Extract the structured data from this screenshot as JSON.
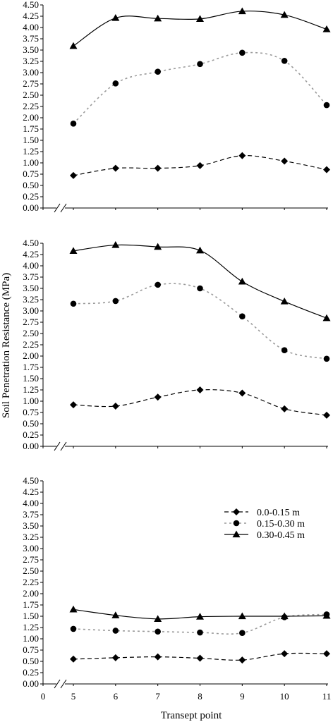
{
  "chart_data": {
    "type": "line",
    "ylabel": "Soil Penetration Resistance (MPa)",
    "xlabel": "Transept point",
    "x_ticks": [
      "0",
      "5",
      "6",
      "7",
      "8",
      "9",
      "10",
      "11"
    ],
    "x": [
      5,
      6,
      7,
      8,
      9,
      10,
      11
    ],
    "xlim": [
      5,
      11
    ],
    "ylim": [
      0,
      4.5
    ],
    "y_ticks": [
      "0.00",
      "0.25",
      "0.50",
      "0.75",
      "1.00",
      "1.25",
      "1.50",
      "1.75",
      "2.00",
      "2.25",
      "2.50",
      "2.75",
      "3.00",
      "3.25",
      "3.50",
      "3.75",
      "4.00",
      "4.25",
      "4.50"
    ],
    "axis_break": true,
    "legend_placement": "right, upper-middle of bottom panel",
    "series_styles": [
      {
        "dash": "6,4",
        "marker": "diamond",
        "stroke": "#000000"
      },
      {
        "dash": "3,4",
        "marker": "circle",
        "stroke": "#9a9a9a"
      },
      {
        "dash": "none",
        "marker": "triangle",
        "stroke": "#000000"
      }
    ],
    "legend": [
      "0.0-0.15 m",
      "0.15-0.30 m",
      "0.30-0.45 m"
    ],
    "panels": [
      {
        "series": [
          {
            "name": "0.0-0.15 m",
            "values": [
              0.72,
              0.88,
              0.88,
              0.94,
              1.16,
              1.04,
              0.85
            ]
          },
          {
            "name": "0.15-0.30 m",
            "values": [
              1.87,
              2.76,
              3.02,
              3.19,
              3.44,
              3.26,
              2.28
            ]
          },
          {
            "name": "0.30-0.45 m",
            "values": [
              3.59,
              4.21,
              4.2,
              4.19,
              4.36,
              4.28,
              3.96
            ]
          }
        ]
      },
      {
        "series": [
          {
            "name": "0.0-0.15 m",
            "values": [
              0.92,
              0.89,
              1.09,
              1.25,
              1.18,
              0.83,
              0.69
            ]
          },
          {
            "name": "0.15-0.30 m",
            "values": [
              3.16,
              3.22,
              3.58,
              3.5,
              2.88,
              2.13,
              1.94
            ]
          },
          {
            "name": "0.30-0.45 m",
            "values": [
              4.33,
              4.46,
              4.42,
              4.34,
              3.65,
              3.21,
              2.84
            ]
          }
        ]
      },
      {
        "series": [
          {
            "name": "0.0-0.15 m",
            "values": [
              0.55,
              0.58,
              0.6,
              0.57,
              0.53,
              0.67,
              0.67
            ]
          },
          {
            "name": "0.15-0.30 m",
            "values": [
              1.22,
              1.18,
              1.16,
              1.14,
              1.13,
              1.48,
              1.54
            ]
          },
          {
            "name": "0.30-0.45 m",
            "values": [
              1.65,
              1.52,
              1.44,
              1.49,
              1.5,
              1.5,
              1.51
            ]
          }
        ]
      }
    ]
  }
}
